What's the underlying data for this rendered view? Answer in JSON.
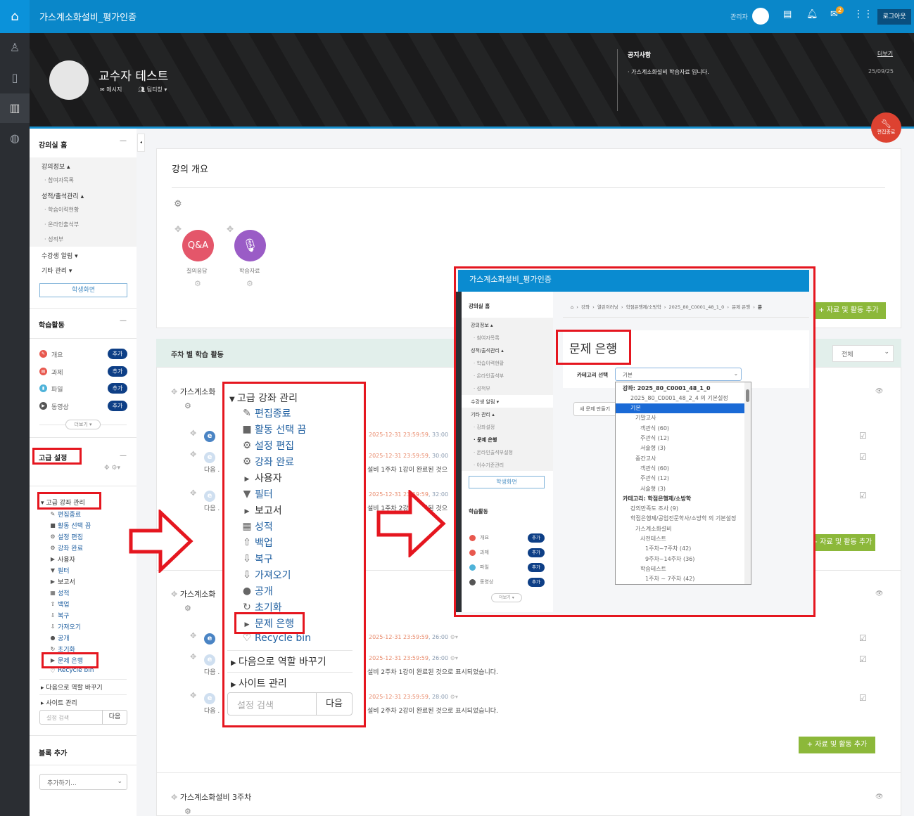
{
  "header": {
    "title": "가스계소화설비_평가인증",
    "user": "관리자",
    "mail_badge": "2",
    "logout": "로그아웃"
  },
  "hero": {
    "name": "교수자 테스트",
    "message": "메시지",
    "team": "팀티칭",
    "notice_title": "공지사항",
    "notice_more": "더보기",
    "notice_item": "가스계소화설비 학습자료 입니다.",
    "notice_date": "25/09/25",
    "edit_end": "편집종료"
  },
  "colors": {
    "brand": "#0a87c9",
    "accent_red": "#e5161f",
    "green": "#8cb83a",
    "badge": "#0e3f86"
  },
  "sidebar": {
    "home_title": "강의실 홈",
    "groups": [
      {
        "label": "강의정보 ▴",
        "items": [
          "참여자목록"
        ]
      },
      {
        "label": "성적/출석관리 ▴",
        "items": [
          "학습이력현황",
          "온라인출석부",
          "성적부"
        ]
      }
    ],
    "notice": "수강생 알림 ▾",
    "etc": "기타 관리 ▾",
    "student_view": "학생화면",
    "activity_title": "학습활동",
    "activities": [
      {
        "label": "개요",
        "icon": "pencil-icon",
        "color": "#e8584e"
      },
      {
        "label": "과제",
        "icon": "assignment-icon",
        "color": "#e8584e"
      },
      {
        "label": "파일",
        "icon": "file-icon",
        "color": "#4fb3d9"
      },
      {
        "label": "동영상",
        "icon": "video-icon",
        "color": "#555"
      }
    ],
    "add": "추가",
    "more": "더보기 ▾",
    "settings_title": "고급 설정",
    "block_add_title": "블록 추가",
    "block_add_select": "추가하기..."
  },
  "settings_menu": {
    "header": "고급 강좌 관리",
    "items": [
      {
        "label": "편집종료",
        "icon": "pencil-icon",
        "glyph": "✎",
        "link": true
      },
      {
        "label": "활동 선택 끔",
        "icon": "square-icon",
        "glyph": "■",
        "link": true
      },
      {
        "label": "설정 편집",
        "icon": "gear-icon",
        "glyph": "⚙",
        "link": true
      },
      {
        "label": "강좌 완료",
        "icon": "gear-icon",
        "glyph": "⚙",
        "link": true
      },
      {
        "label": "사용자",
        "icon": "caret-right-icon",
        "glyph": "▶",
        "link": false
      },
      {
        "label": "필터",
        "icon": "filter-icon",
        "glyph": "▼",
        "link": true
      },
      {
        "label": "보고서",
        "icon": "caret-right-icon",
        "glyph": "▶",
        "link": false
      },
      {
        "label": "성적",
        "icon": "table-icon",
        "glyph": "▦",
        "link": true
      },
      {
        "label": "백업",
        "icon": "upload-icon",
        "glyph": "⇧",
        "link": true
      },
      {
        "label": "복구",
        "icon": "download-icon",
        "glyph": "⇩",
        "link": true
      },
      {
        "label": "가져오기",
        "icon": "download-icon",
        "glyph": "⇩",
        "link": true
      },
      {
        "label": "공개",
        "icon": "globe-icon",
        "glyph": "●",
        "link": true
      },
      {
        "label": "초기화",
        "icon": "reset-icon",
        "glyph": "↻",
        "link": true
      },
      {
        "label": "문제 은행",
        "icon": "caret-right-icon",
        "glyph": "▶",
        "link": true
      },
      {
        "label": "Recycle bin",
        "icon": "trash-icon",
        "glyph": "♡",
        "link": true
      }
    ],
    "switch_role": "다음으로 역할 바꾸기",
    "site_admin": "사이트 관리",
    "search_placeholder": "설정 검색",
    "search_button": "다음"
  },
  "main": {
    "overview_title": "강의 개요",
    "overview_items": [
      {
        "label": "질의응답",
        "badge": "Q&A",
        "color": "#e4566a"
      },
      {
        "label": "학습자료",
        "icon": "microphone-icon",
        "color": "#9a5cc6"
      }
    ],
    "weekly_title": "주차 별 학습 활동",
    "filter": "전체",
    "add_activity": "+ 자료 및 활동 추가",
    "weeks": [
      {
        "title": "가스계소화",
        "rows": [
          {
            "date": "2025-12-31 23:59:59",
            "dur": ", 33:00",
            "note": ""
          },
          {
            "date": "2025-12-31 23:59:59",
            "dur": ", 30:00",
            "prefix": "다음 .",
            "note": "설비 1주차 1강이 완료된 것으"
          },
          {
            "date": "2025-12-31 23:59:59",
            "dur": ", 32:00",
            "prefix": "다음 .",
            "note": "설비 1주차 2강이 완료된 것으"
          }
        ]
      },
      {
        "title": "가스계소화",
        "rows": [
          {
            "date": "2025-12-31 23:59:59",
            "dur": ", 26:00",
            "note": ""
          },
          {
            "date": "2025-12-31 23:59:59",
            "dur": ", 26:00",
            "prefix": "다음 .",
            "note": "설비 2주차 1강이 완료된 것으로 표시되었습니다."
          },
          {
            "date": "2025-12-31 23:59:59",
            "dur": ", 28:00",
            "prefix": "다음 .",
            "note": "설비 2주차 2강이 완료된 것으로 표시되었습니다."
          }
        ]
      },
      {
        "title": "가스계소화설비 3주차",
        "rows": []
      }
    ]
  },
  "inset": {
    "title": "가스계소화설비_평가인증",
    "breadcrumb": [
      "강좌",
      "열린이러닝",
      "학점은행제/소방학",
      "2025_80_C0001_48_1_0",
      "문제 은행",
      "문"
    ],
    "sidebar_title": "강의실 홈",
    "sidebar": [
      {
        "t": "강의정보 ▴",
        "k": "g"
      },
      {
        "t": "· 참여자목록",
        "k": "s"
      },
      {
        "t": "성적/출석관리 ▴",
        "k": "g"
      },
      {
        "t": "· 학습이력현황",
        "k": "s"
      },
      {
        "t": "· 온라인출석부",
        "k": "s"
      },
      {
        "t": "· 성적부",
        "k": "s"
      },
      {
        "t": "수강생 알림 ▾",
        "k": "w"
      },
      {
        "t": "기타 관리 ▴",
        "k": "g"
      },
      {
        "t": "· 강좌설정",
        "k": "s"
      },
      {
        "t": "· 문제 은행",
        "k": "b"
      },
      {
        "t": "· 온라인출석부설정",
        "k": "s"
      },
      {
        "t": "· 이수기준관리",
        "k": "s"
      }
    ],
    "student_view": "학생화면",
    "activity_title": "학습활동",
    "activities": [
      "개요",
      "과제",
      "파일",
      "동영상"
    ],
    "add": "추가",
    "more": "더보기 ▾",
    "page_title": "문제 은행",
    "category_label": "카테고리 선택",
    "category_value": "기본",
    "new_question": "새 문제 만들기",
    "options": [
      {
        "t": "강좌: 2025_80_C0001_48_1_0",
        "l": 0,
        "b": true
      },
      {
        "t": "2025_80_C0001_48_2_4 의 기본설정",
        "l": 1
      },
      {
        "t": "기본",
        "l": 1,
        "sel": true
      },
      {
        "t": "기말고사",
        "l": 2
      },
      {
        "t": "객관식 (60)",
        "l": 3
      },
      {
        "t": "주관식 (12)",
        "l": 3
      },
      {
        "t": "서술형 (3)",
        "l": 3
      },
      {
        "t": "중간고사",
        "l": 2
      },
      {
        "t": "객관식 (60)",
        "l": 3
      },
      {
        "t": "주관식 (12)",
        "l": 3
      },
      {
        "t": "서술형 (3)",
        "l": 3
      },
      {
        "t": "카테고리: 학점은행제/소방학",
        "l": 0,
        "b": true
      },
      {
        "t": "강의만족도 조사 (9)",
        "l": 1
      },
      {
        "t": "학점은행제/공업전문학사/소방학 의 기본설정",
        "l": 1
      },
      {
        "t": "가스계소화설비",
        "l": 2
      },
      {
        "t": "사전테스트",
        "l": 3
      },
      {
        "t": "1주차~7주차 (42)",
        "l": 4
      },
      {
        "t": "9주차~14주차 (36)",
        "l": 4
      },
      {
        "t": "학습테스트",
        "l": 3
      },
      {
        "t": "1주차 ~ 7주차 (42)",
        "l": 4
      }
    ]
  }
}
